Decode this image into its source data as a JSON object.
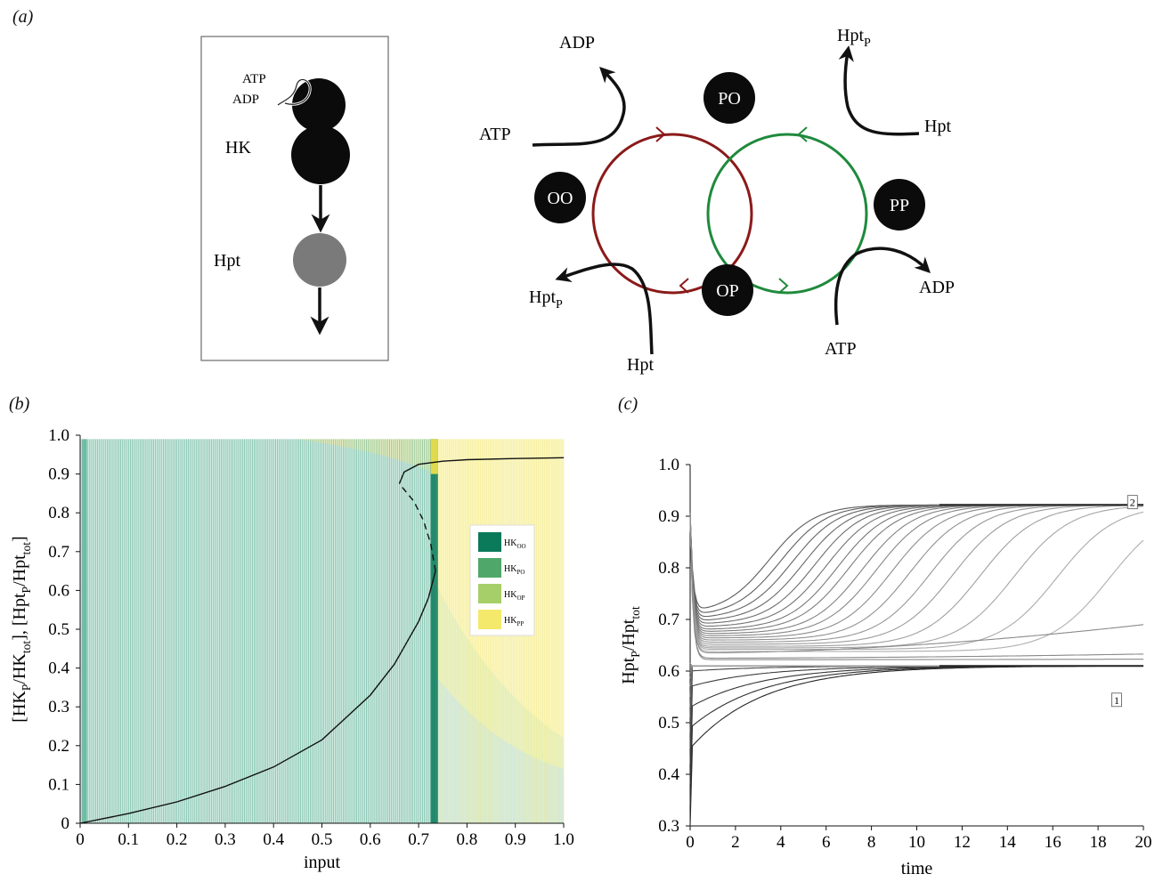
{
  "panel_labels": {
    "a": "(a)",
    "b": "(b)",
    "c": "(c)"
  },
  "panel_a_left": {
    "atp": "ATP",
    "adp": "ADP",
    "hk": "HK",
    "hpt": "Hpt"
  },
  "panel_a_right": {
    "nodes": {
      "oo": "OO",
      "po": "PO",
      "op": "OP",
      "pp": "PP"
    },
    "adp_top": "ADP",
    "atp_left": "ATP",
    "hptp_top_base": "Hpt",
    "hptp_top_sub": "P",
    "hpt_right": "Hpt",
    "adp_right": "ADP",
    "atp_bottom": "ATP",
    "hptp_left_base": "Hpt",
    "hptp_left_sub": "P",
    "hpt_bottom": "Hpt",
    "colors": {
      "red_cycle": "#8b1a1a",
      "green_cycle": "#1f8a3c"
    }
  },
  "chart_data": [
    {
      "type": "line",
      "panel": "b",
      "xlabel": "input",
      "ylabel_parts": [
        "[HK",
        "P",
        "/HK",
        "tot",
        "], [Hpt",
        "P",
        "/Hpt",
        "tot",
        "]"
      ],
      "xlim": [
        0,
        1.0
      ],
      "ylim": [
        0,
        1.0
      ],
      "xticks": [
        "0",
        "0.1",
        "0.2",
        "0.3",
        "0.4",
        "0.5",
        "0.6",
        "0.7",
        "0.8",
        "0.9",
        "1.0"
      ],
      "yticks": [
        "0",
        "0.1",
        "0.2",
        "0.3",
        "0.4",
        "0.5",
        "0.6",
        "0.7",
        "0.8",
        "0.9",
        "1.0"
      ],
      "legend": [
        {
          "base": "HK",
          "sub": "OO",
          "color": "#0a7a5a"
        },
        {
          "base": "HK",
          "sub": "PO",
          "color": "#4fa86a"
        },
        {
          "base": "HK",
          "sub": "OP",
          "color": "#a6cf6a"
        },
        {
          "base": "HK",
          "sub": "PP",
          "color": "#f4e96a"
        }
      ],
      "stable_lower": {
        "x": [
          0,
          0.1,
          0.2,
          0.3,
          0.4,
          0.5,
          0.6,
          0.65,
          0.7,
          0.72,
          0.735
        ],
        "y": [
          0,
          0.025,
          0.055,
          0.095,
          0.145,
          0.215,
          0.33,
          0.41,
          0.52,
          0.58,
          0.65
        ]
      },
      "unstable": {
        "x": [
          0.735,
          0.725,
          0.71,
          0.69,
          0.67,
          0.66
        ],
        "y": [
          0.65,
          0.72,
          0.78,
          0.83,
          0.86,
          0.875
        ]
      },
      "stable_upper": {
        "x": [
          0.66,
          0.67,
          0.7,
          0.75,
          0.8,
          0.9,
          1.0
        ],
        "y": [
          0.875,
          0.905,
          0.925,
          0.933,
          0.937,
          0.94,
          0.942
        ]
      },
      "bifurcation_x": 0.735
    },
    {
      "type": "line",
      "panel": "c",
      "xlabel": "time",
      "ylabel_parts": [
        "Hpt",
        "P",
        "/Hpt",
        "tot"
      ],
      "xlim": [
        0,
        20
      ],
      "ylim": [
        0.3,
        1.0
      ],
      "xticks": [
        "0",
        "2",
        "4",
        "6",
        "8",
        "10",
        "12",
        "14",
        "16",
        "18",
        "20"
      ],
      "yticks": [
        "0.3",
        "0.4",
        "0.5",
        "0.6",
        "0.7",
        "0.8",
        "0.9",
        "1.0"
      ],
      "steady_state_high": 0.922,
      "steady_state_low": 0.61,
      "box_labels": [
        {
          "text": "2",
          "x": 19.5,
          "y": 0.923
        },
        {
          "text": "1",
          "x": 18.8,
          "y": 0.54
        }
      ],
      "upper_branch_midpoints": [
        3.5,
        4.0,
        4.5,
        5.0,
        5.5,
        6.0,
        6.5,
        7.0,
        7.6,
        8.2,
        8.9,
        9.7,
        10.6,
        11.6,
        12.8,
        14.3,
        16.2,
        18.5
      ],
      "upper_branch_start_values": [
        0.71,
        0.705,
        0.7,
        0.695,
        0.69,
        0.685,
        0.68,
        0.676,
        0.672,
        0.668,
        0.664,
        0.66,
        0.656,
        0.652,
        0.648,
        0.645,
        0.642,
        0.638
      ],
      "lower_branch_start_values": [
        0.3,
        0.34,
        0.38,
        0.42,
        0.45,
        0.48,
        0.51,
        0.53,
        0.55,
        0.57,
        0.585,
        0.595,
        0.6,
        0.605,
        0.61,
        0.615
      ],
      "slow_curves": [
        {
          "start": 0.635,
          "end": 0.69
        },
        {
          "start": 0.625,
          "end": 0.633
        },
        {
          "start": 0.622,
          "end": 0.623
        }
      ]
    }
  ]
}
